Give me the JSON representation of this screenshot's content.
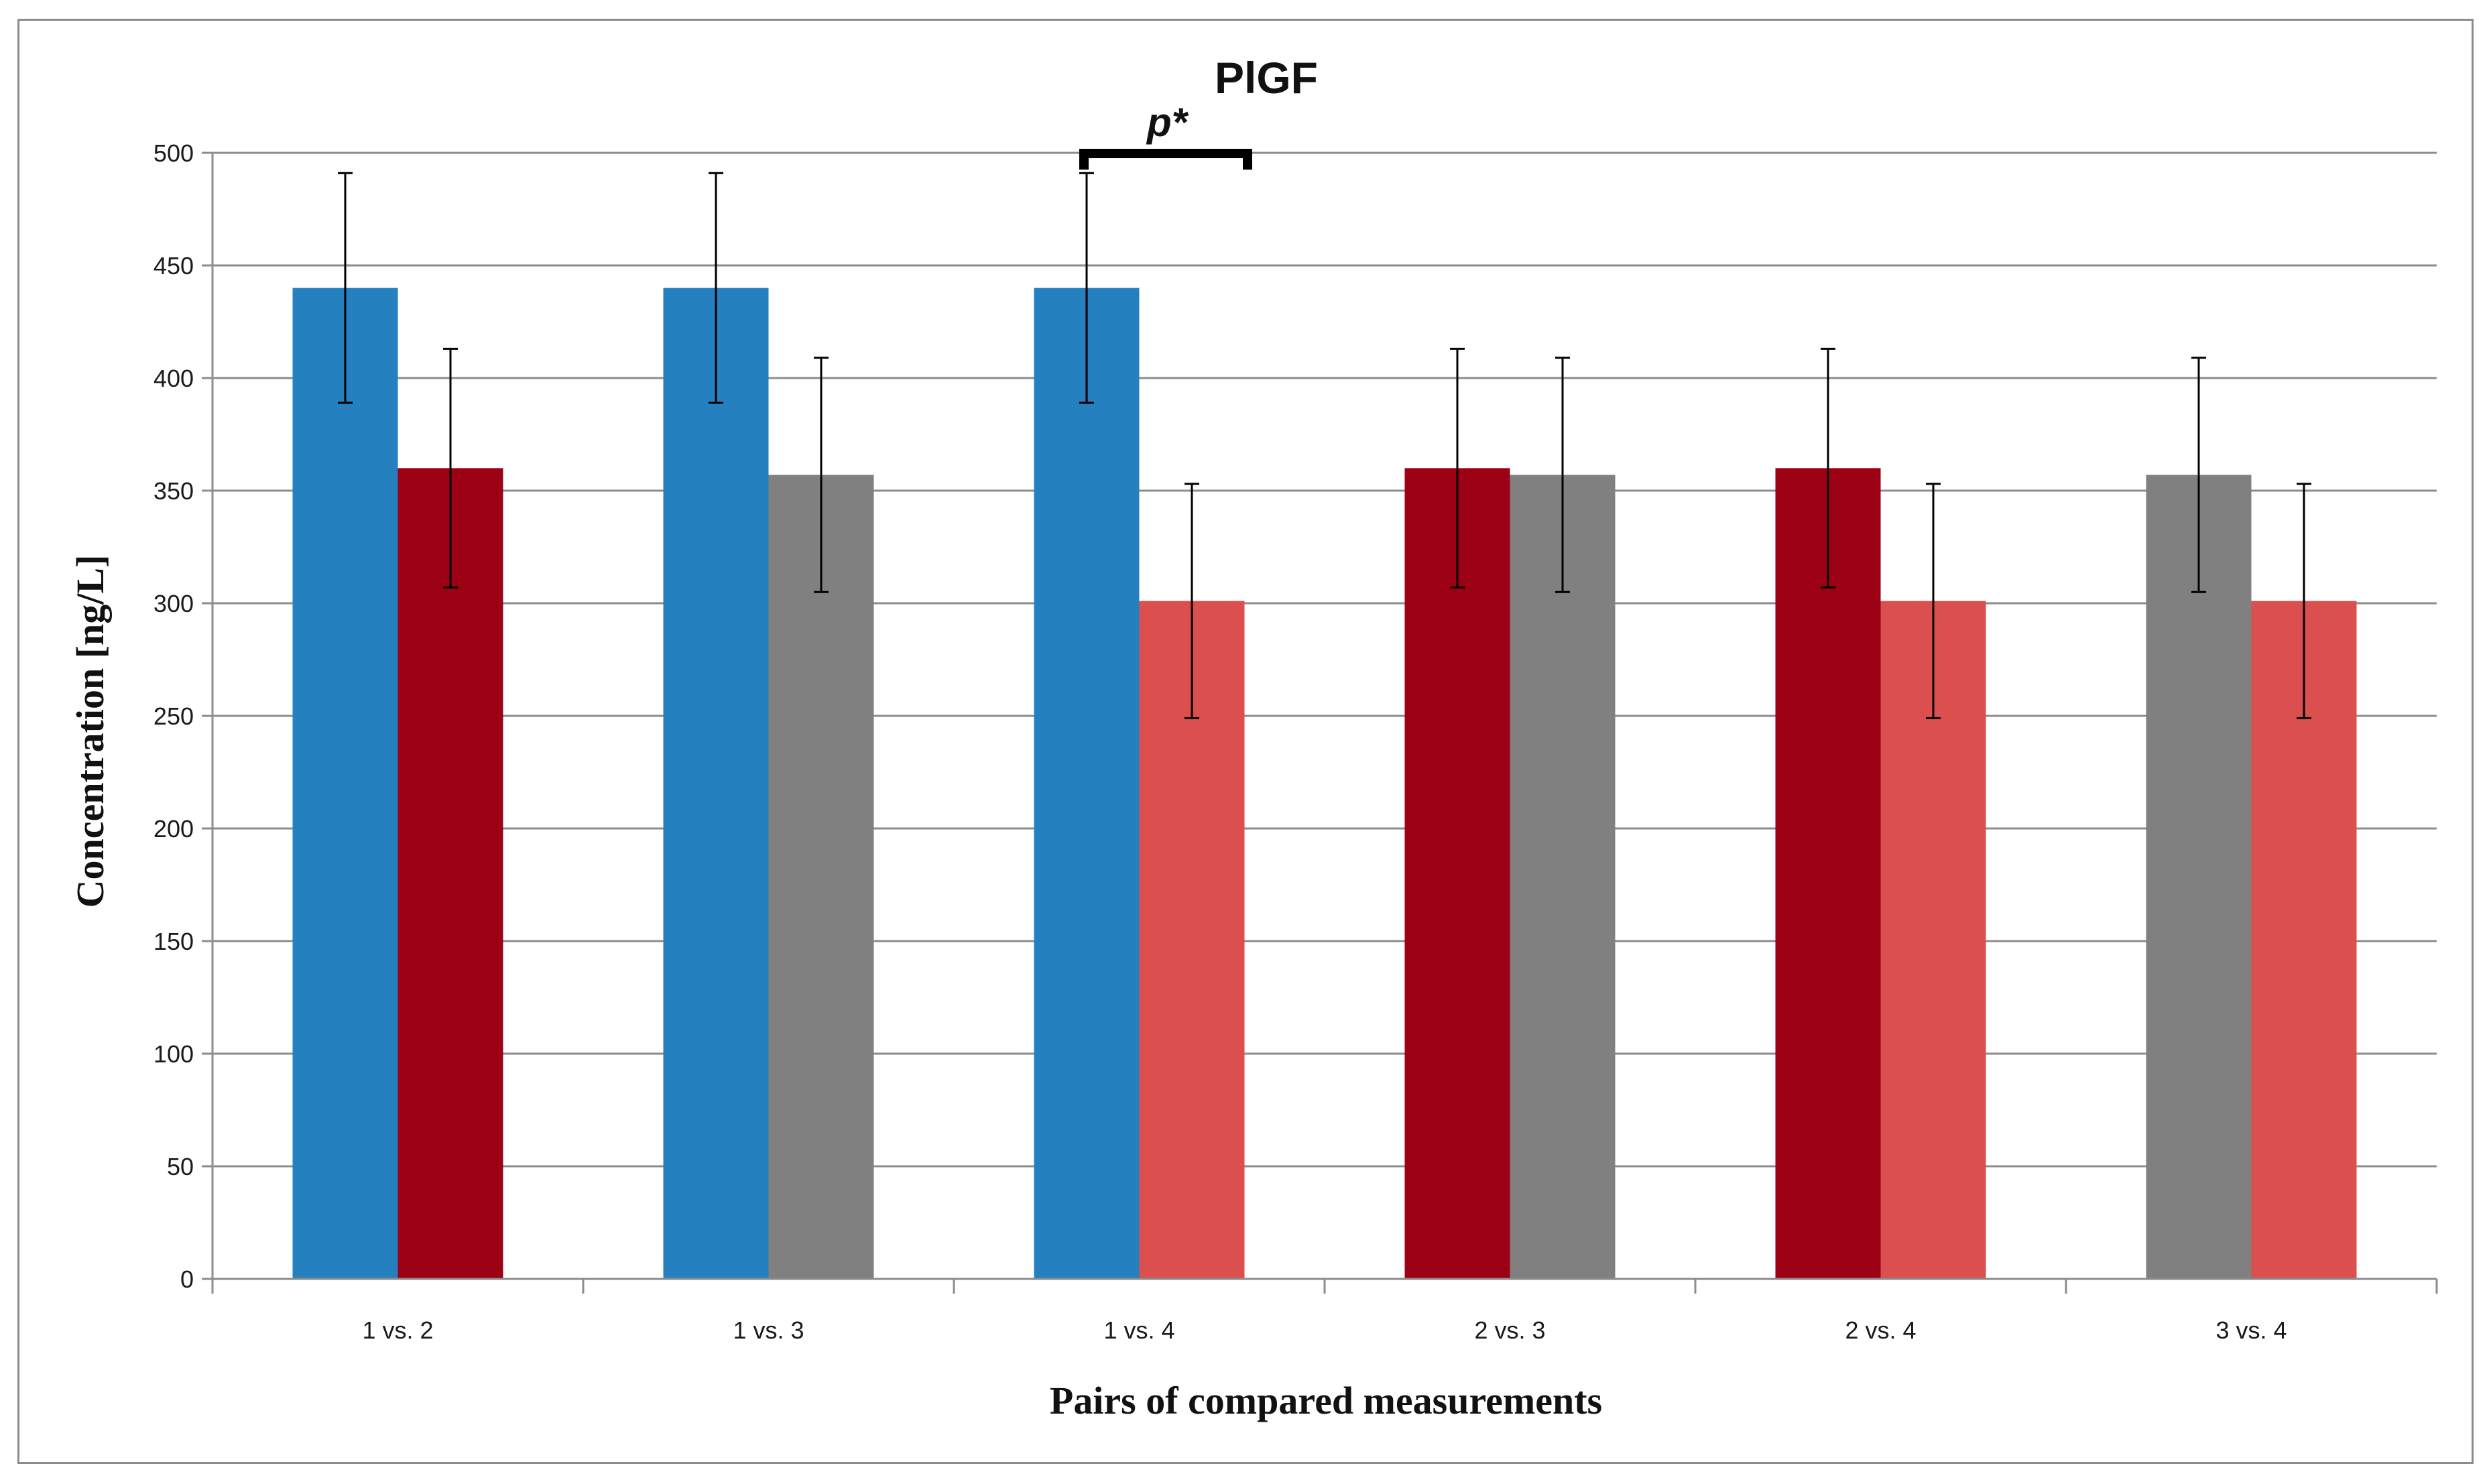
{
  "chart_data": {
    "type": "bar",
    "title": "PlGF",
    "xlabel": "Pairs of compared measurements",
    "ylabel": "Concentration [ng/L]",
    "ylim": [
      0,
      500
    ],
    "yticks": [
      0,
      50,
      100,
      150,
      200,
      250,
      300,
      350,
      400,
      450,
      500
    ],
    "grid": true,
    "categories": [
      "1 vs. 2",
      "1 vs. 3",
      "1 vs. 4",
      "2 vs. 3",
      "2 vs. 4",
      "3 vs. 4"
    ],
    "bars": [
      [
        {
          "measurement": 1,
          "value": 440,
          "error": 51,
          "color": "#2580bf"
        },
        {
          "measurement": 2,
          "value": 360,
          "error": 53,
          "color": "#9b0014"
        }
      ],
      [
        {
          "measurement": 1,
          "value": 440,
          "error": 51,
          "color": "#2580bf"
        },
        {
          "measurement": 3,
          "value": 357,
          "error": 52,
          "color": "#808080"
        }
      ],
      [
        {
          "measurement": 1,
          "value": 440,
          "error": 51,
          "color": "#2580bf"
        },
        {
          "measurement": 4,
          "value": 301,
          "error": 52,
          "color": "#db4f4f"
        }
      ],
      [
        {
          "measurement": 2,
          "value": 360,
          "error": 53,
          "color": "#9b0014"
        },
        {
          "measurement": 3,
          "value": 357,
          "error": 52,
          "color": "#808080"
        }
      ],
      [
        {
          "measurement": 2,
          "value": 360,
          "error": 53,
          "color": "#9b0014"
        },
        {
          "measurement": 4,
          "value": 301,
          "error": 52,
          "color": "#db4f4f"
        }
      ],
      [
        {
          "measurement": 3,
          "value": 357,
          "error": 52,
          "color": "#808080"
        },
        {
          "measurement": 4,
          "value": 301,
          "error": 52,
          "color": "#db4f4f"
        }
      ]
    ],
    "annotation": {
      "text": "p*",
      "category": "1 vs. 4"
    },
    "colors": {
      "grid": "#8c8c8c",
      "axis": "#8c8c8c",
      "error_bar": "#000000"
    }
  }
}
